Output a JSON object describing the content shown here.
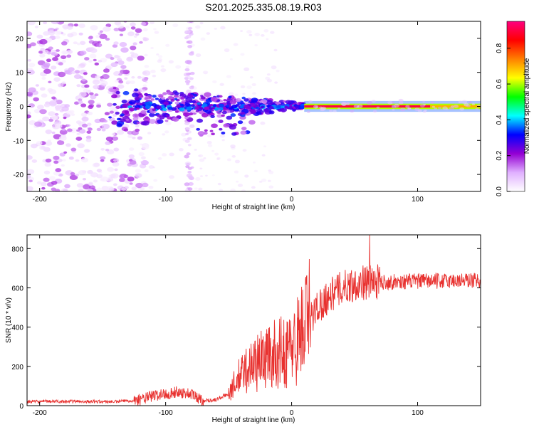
{
  "figure": {
    "title": "S201.2025.335.08.19.R03"
  },
  "chart_data": [
    {
      "type": "heatmap",
      "name": "spectrogram",
      "xlabel": "Height of straight line (km)",
      "ylabel": "Frequency (Hz)",
      "xlim": [
        -210,
        150
      ],
      "ylim": [
        -25,
        25
      ],
      "xticks": [
        -200,
        -100,
        0,
        100
      ],
      "yticks": [
        -20,
        -10,
        0,
        10,
        20
      ],
      "colorbar": {
        "label": "Normalized spectral amplitude",
        "range": [
          0.0,
          0.95
        ],
        "ticks": [
          "0.0",
          "0.2",
          "0.4",
          "0.6",
          "0.8"
        ],
        "tick_values": [
          0.0,
          0.2,
          0.4,
          0.6,
          0.8
        ],
        "stops": [
          "#ffffff",
          "#e0b0ff",
          "#9400d3",
          "#0000ff",
          "#00ffff",
          "#00ff00",
          "#ffff00",
          "#ff8000",
          "#ff0000",
          "#ff0080"
        ]
      },
      "features": [
        {
          "label": "scattered noise region",
          "x_range": [
            -210,
            -120
          ],
          "freq_range": [
            -25,
            25
          ],
          "amplitude": 0.15
        },
        {
          "label": "vertical streak",
          "x": -80,
          "freq_range": [
            -25,
            25
          ],
          "amplitude": 0.1
        },
        {
          "label": "converging line",
          "x_range": [
            -145,
            10
          ],
          "freq_start_spread": 6,
          "amplitude": 0.3
        },
        {
          "label": "steady line at 0 Hz",
          "x_range": [
            10,
            150
          ],
          "frequency": 0,
          "amplitude": 0.9
        }
      ]
    },
    {
      "type": "line",
      "name": "snr",
      "xlabel": "Height of straight line (km)",
      "ylabel": "SNR (10 * v/v)",
      "xlim": [
        -210,
        150
      ],
      "ylim": [
        0,
        870
      ],
      "xticks": [
        -200,
        -100,
        0,
        100
      ],
      "yticks": [
        0,
        200,
        400,
        600,
        800
      ],
      "color": "#e8312f",
      "envelope": [
        {
          "x": -210,
          "y": 20
        },
        {
          "x": -180,
          "y": 22
        },
        {
          "x": -140,
          "y": 20
        },
        {
          "x": -120,
          "y": 30
        },
        {
          "x": -110,
          "y": 50
        },
        {
          "x": -100,
          "y": 60
        },
        {
          "x": -90,
          "y": 70
        },
        {
          "x": -80,
          "y": 60
        },
        {
          "x": -70,
          "y": 25
        },
        {
          "x": -60,
          "y": 30
        },
        {
          "x": -50,
          "y": 60
        },
        {
          "x": -40,
          "y": 150
        },
        {
          "x": -30,
          "y": 200
        },
        {
          "x": -20,
          "y": 230
        },
        {
          "x": -10,
          "y": 250
        },
        {
          "x": 0,
          "y": 270
        },
        {
          "x": 10,
          "y": 380
        },
        {
          "x": 20,
          "y": 500
        },
        {
          "x": 30,
          "y": 560
        },
        {
          "x": 40,
          "y": 600
        },
        {
          "x": 50,
          "y": 620
        },
        {
          "x": 60,
          "y": 630
        },
        {
          "x": 80,
          "y": 630
        },
        {
          "x": 100,
          "y": 635
        },
        {
          "x": 120,
          "y": 635
        },
        {
          "x": 150,
          "y": 640
        }
      ],
      "peak": {
        "x": 62,
        "y": 870
      }
    }
  ]
}
